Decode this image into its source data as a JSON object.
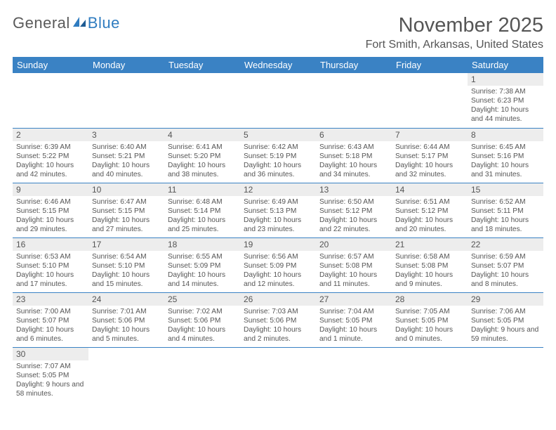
{
  "logo": {
    "text1": "General",
    "text2": "Blue"
  },
  "header": {
    "month_title": "November 2025",
    "location": "Fort Smith, Arkansas, United States"
  },
  "colors": {
    "header_bg": "#3a82c4",
    "header_text": "#ffffff",
    "daynum_bg": "#ededed",
    "row_border": "#3a82c4",
    "body_text": "#555555",
    "logo_gray": "#5a5a5a",
    "logo_blue": "#2f7cc0",
    "page_bg": "#ffffff"
  },
  "weekdays": [
    "Sunday",
    "Monday",
    "Tuesday",
    "Wednesday",
    "Thursday",
    "Friday",
    "Saturday"
  ],
  "weeks": [
    [
      {
        "day": "",
        "sunrise": "",
        "sunset": "",
        "daylight": ""
      },
      {
        "day": "",
        "sunrise": "",
        "sunset": "",
        "daylight": ""
      },
      {
        "day": "",
        "sunrise": "",
        "sunset": "",
        "daylight": ""
      },
      {
        "day": "",
        "sunrise": "",
        "sunset": "",
        "daylight": ""
      },
      {
        "day": "",
        "sunrise": "",
        "sunset": "",
        "daylight": ""
      },
      {
        "day": "",
        "sunrise": "",
        "sunset": "",
        "daylight": ""
      },
      {
        "day": "1",
        "sunrise": "Sunrise: 7:38 AM",
        "sunset": "Sunset: 6:23 PM",
        "daylight": "Daylight: 10 hours and 44 minutes."
      }
    ],
    [
      {
        "day": "2",
        "sunrise": "Sunrise: 6:39 AM",
        "sunset": "Sunset: 5:22 PM",
        "daylight": "Daylight: 10 hours and 42 minutes."
      },
      {
        "day": "3",
        "sunrise": "Sunrise: 6:40 AM",
        "sunset": "Sunset: 5:21 PM",
        "daylight": "Daylight: 10 hours and 40 minutes."
      },
      {
        "day": "4",
        "sunrise": "Sunrise: 6:41 AM",
        "sunset": "Sunset: 5:20 PM",
        "daylight": "Daylight: 10 hours and 38 minutes."
      },
      {
        "day": "5",
        "sunrise": "Sunrise: 6:42 AM",
        "sunset": "Sunset: 5:19 PM",
        "daylight": "Daylight: 10 hours and 36 minutes."
      },
      {
        "day": "6",
        "sunrise": "Sunrise: 6:43 AM",
        "sunset": "Sunset: 5:18 PM",
        "daylight": "Daylight: 10 hours and 34 minutes."
      },
      {
        "day": "7",
        "sunrise": "Sunrise: 6:44 AM",
        "sunset": "Sunset: 5:17 PM",
        "daylight": "Daylight: 10 hours and 32 minutes."
      },
      {
        "day": "8",
        "sunrise": "Sunrise: 6:45 AM",
        "sunset": "Sunset: 5:16 PM",
        "daylight": "Daylight: 10 hours and 31 minutes."
      }
    ],
    [
      {
        "day": "9",
        "sunrise": "Sunrise: 6:46 AM",
        "sunset": "Sunset: 5:15 PM",
        "daylight": "Daylight: 10 hours and 29 minutes."
      },
      {
        "day": "10",
        "sunrise": "Sunrise: 6:47 AM",
        "sunset": "Sunset: 5:15 PM",
        "daylight": "Daylight: 10 hours and 27 minutes."
      },
      {
        "day": "11",
        "sunrise": "Sunrise: 6:48 AM",
        "sunset": "Sunset: 5:14 PM",
        "daylight": "Daylight: 10 hours and 25 minutes."
      },
      {
        "day": "12",
        "sunrise": "Sunrise: 6:49 AM",
        "sunset": "Sunset: 5:13 PM",
        "daylight": "Daylight: 10 hours and 23 minutes."
      },
      {
        "day": "13",
        "sunrise": "Sunrise: 6:50 AM",
        "sunset": "Sunset: 5:12 PM",
        "daylight": "Daylight: 10 hours and 22 minutes."
      },
      {
        "day": "14",
        "sunrise": "Sunrise: 6:51 AM",
        "sunset": "Sunset: 5:12 PM",
        "daylight": "Daylight: 10 hours and 20 minutes."
      },
      {
        "day": "15",
        "sunrise": "Sunrise: 6:52 AM",
        "sunset": "Sunset: 5:11 PM",
        "daylight": "Daylight: 10 hours and 18 minutes."
      }
    ],
    [
      {
        "day": "16",
        "sunrise": "Sunrise: 6:53 AM",
        "sunset": "Sunset: 5:10 PM",
        "daylight": "Daylight: 10 hours and 17 minutes."
      },
      {
        "day": "17",
        "sunrise": "Sunrise: 6:54 AM",
        "sunset": "Sunset: 5:10 PM",
        "daylight": "Daylight: 10 hours and 15 minutes."
      },
      {
        "day": "18",
        "sunrise": "Sunrise: 6:55 AM",
        "sunset": "Sunset: 5:09 PM",
        "daylight": "Daylight: 10 hours and 14 minutes."
      },
      {
        "day": "19",
        "sunrise": "Sunrise: 6:56 AM",
        "sunset": "Sunset: 5:09 PM",
        "daylight": "Daylight: 10 hours and 12 minutes."
      },
      {
        "day": "20",
        "sunrise": "Sunrise: 6:57 AM",
        "sunset": "Sunset: 5:08 PM",
        "daylight": "Daylight: 10 hours and 11 minutes."
      },
      {
        "day": "21",
        "sunrise": "Sunrise: 6:58 AM",
        "sunset": "Sunset: 5:08 PM",
        "daylight": "Daylight: 10 hours and 9 minutes."
      },
      {
        "day": "22",
        "sunrise": "Sunrise: 6:59 AM",
        "sunset": "Sunset: 5:07 PM",
        "daylight": "Daylight: 10 hours and 8 minutes."
      }
    ],
    [
      {
        "day": "23",
        "sunrise": "Sunrise: 7:00 AM",
        "sunset": "Sunset: 5:07 PM",
        "daylight": "Daylight: 10 hours and 6 minutes."
      },
      {
        "day": "24",
        "sunrise": "Sunrise: 7:01 AM",
        "sunset": "Sunset: 5:06 PM",
        "daylight": "Daylight: 10 hours and 5 minutes."
      },
      {
        "day": "25",
        "sunrise": "Sunrise: 7:02 AM",
        "sunset": "Sunset: 5:06 PM",
        "daylight": "Daylight: 10 hours and 4 minutes."
      },
      {
        "day": "26",
        "sunrise": "Sunrise: 7:03 AM",
        "sunset": "Sunset: 5:06 PM",
        "daylight": "Daylight: 10 hours and 2 minutes."
      },
      {
        "day": "27",
        "sunrise": "Sunrise: 7:04 AM",
        "sunset": "Sunset: 5:05 PM",
        "daylight": "Daylight: 10 hours and 1 minute."
      },
      {
        "day": "28",
        "sunrise": "Sunrise: 7:05 AM",
        "sunset": "Sunset: 5:05 PM",
        "daylight": "Daylight: 10 hours and 0 minutes."
      },
      {
        "day": "29",
        "sunrise": "Sunrise: 7:06 AM",
        "sunset": "Sunset: 5:05 PM",
        "daylight": "Daylight: 9 hours and 59 minutes."
      }
    ],
    [
      {
        "day": "30",
        "sunrise": "Sunrise: 7:07 AM",
        "sunset": "Sunset: 5:05 PM",
        "daylight": "Daylight: 9 hours and 58 minutes."
      },
      {
        "day": "",
        "sunrise": "",
        "sunset": "",
        "daylight": ""
      },
      {
        "day": "",
        "sunrise": "",
        "sunset": "",
        "daylight": ""
      },
      {
        "day": "",
        "sunrise": "",
        "sunset": "",
        "daylight": ""
      },
      {
        "day": "",
        "sunrise": "",
        "sunset": "",
        "daylight": ""
      },
      {
        "day": "",
        "sunrise": "",
        "sunset": "",
        "daylight": ""
      },
      {
        "day": "",
        "sunrise": "",
        "sunset": "",
        "daylight": ""
      }
    ]
  ]
}
